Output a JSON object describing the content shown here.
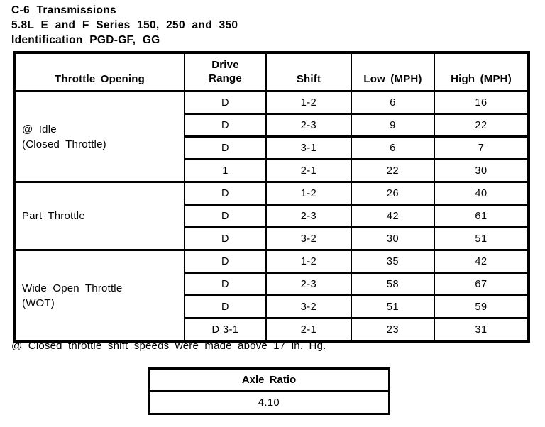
{
  "page": {
    "title_lines": [
      "C-6 Transmissions",
      "5.8L E and F Series 150, 250 and 350",
      "Identification PGD-GF, GG"
    ],
    "footnote": "@ Closed throttle shift speeds were made above 17 in. Hg."
  },
  "shift_table": {
    "headers": [
      "Throttle Opening",
      "Drive Range",
      "Shift",
      "Low (MPH)",
      "High (MPH)"
    ],
    "sections": [
      {
        "label_line1": "@ Idle",
        "label_line2": "(Closed Throttle)",
        "rows": [
          [
            "D",
            "1-2",
            "6",
            "16"
          ],
          [
            "D",
            "2-3",
            "9",
            "22"
          ],
          [
            "D",
            "3-1",
            "6",
            "7"
          ],
          [
            "1",
            "2-1",
            "22",
            "30"
          ]
        ]
      },
      {
        "label_line1": "Part Throttle",
        "label_line2": "",
        "rows": [
          [
            "D",
            "1-2",
            "26",
            "40"
          ],
          [
            "D",
            "2-3",
            "42",
            "61"
          ],
          [
            "D",
            "3-2",
            "30",
            "51"
          ]
        ]
      },
      {
        "label_line1": "Wide Open Throttle",
        "label_line2": "(WOT)",
        "rows": [
          [
            "D",
            "1-2",
            "35",
            "42"
          ],
          [
            "D",
            "2-3",
            "58",
            "67"
          ],
          [
            "D",
            "3-2",
            "51",
            "59"
          ],
          [
            "D 3-1",
            "2-1",
            "23",
            "31"
          ]
        ]
      }
    ]
  },
  "axle_table": {
    "header": "Axle Ratio",
    "value": "4.10"
  }
}
